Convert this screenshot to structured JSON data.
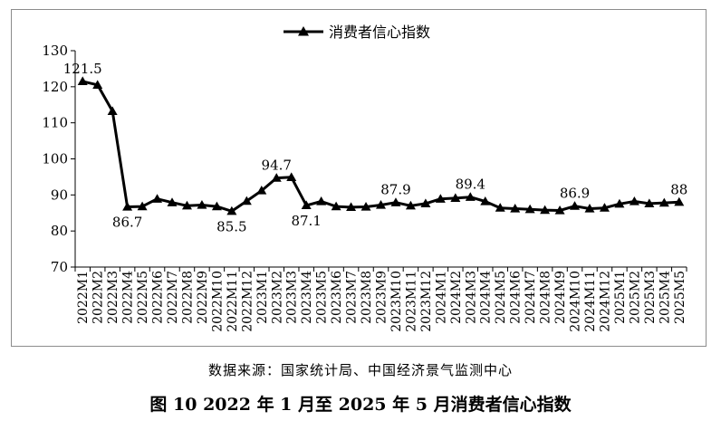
{
  "chart_data": {
    "type": "line",
    "legend_position": "top-center",
    "grid": false,
    "ylim": [
      70,
      130
    ],
    "yticks": [
      70,
      80,
      90,
      100,
      110,
      120,
      130
    ],
    "categories": [
      "2022M1",
      "2022M2",
      "2022M3",
      "2022M4",
      "2022M5",
      "2022M6",
      "2022M7",
      "2022M8",
      "2022M9",
      "2022M10",
      "2022M11",
      "2022M12",
      "2023M1",
      "2023M2",
      "2023M3",
      "2023M4",
      "2023M5",
      "2023M6",
      "2023M7",
      "2023M8",
      "2023M9",
      "2023M10",
      "2023M11",
      "2023M12",
      "2024M1",
      "2024M2",
      "2024M3",
      "2024M4",
      "2024M5",
      "2024M6",
      "2024M7",
      "2024M8",
      "2024M9",
      "2024M10",
      "2024M11",
      "2024M12",
      "2025M1",
      "2025M2",
      "2025M3",
      "2025M4",
      "2025M5"
    ],
    "series": [
      {
        "name": "消费者信心指数",
        "color": "#000000",
        "marker": "triangle",
        "values": [
          121.5,
          120.5,
          113.2,
          86.7,
          86.8,
          88.9,
          87.9,
          87.0,
          87.2,
          86.8,
          85.5,
          88.3,
          91.2,
          94.7,
          94.9,
          87.1,
          88.2,
          86.8,
          86.6,
          86.7,
          87.2,
          87.9,
          87.0,
          87.6,
          88.9,
          89.1,
          89.4,
          88.2,
          86.4,
          86.2,
          86.0,
          85.8,
          85.7,
          86.9,
          86.2,
          86.4,
          87.5,
          88.2,
          87.6,
          87.8,
          88.0
        ]
      }
    ],
    "data_labels": [
      {
        "index": 0,
        "text": "121.5",
        "position": "above"
      },
      {
        "index": 3,
        "text": "86.7",
        "position": "below"
      },
      {
        "index": 10,
        "text": "85.5",
        "position": "below"
      },
      {
        "index": 13,
        "text": "94.7",
        "position": "above"
      },
      {
        "index": 15,
        "text": "87.1",
        "position": "below"
      },
      {
        "index": 21,
        "text": "87.9",
        "position": "above"
      },
      {
        "index": 26,
        "text": "89.4",
        "position": "above"
      },
      {
        "index": 33,
        "text": "86.9",
        "position": "above"
      },
      {
        "index": 40,
        "text": "88",
        "position": "above"
      }
    ]
  },
  "source_text": "数据来源：国家统计局、中国经济景气监测中心",
  "figure_title": "图 10  2022 年 1 月至 2025 年 5 月消费者信心指数"
}
